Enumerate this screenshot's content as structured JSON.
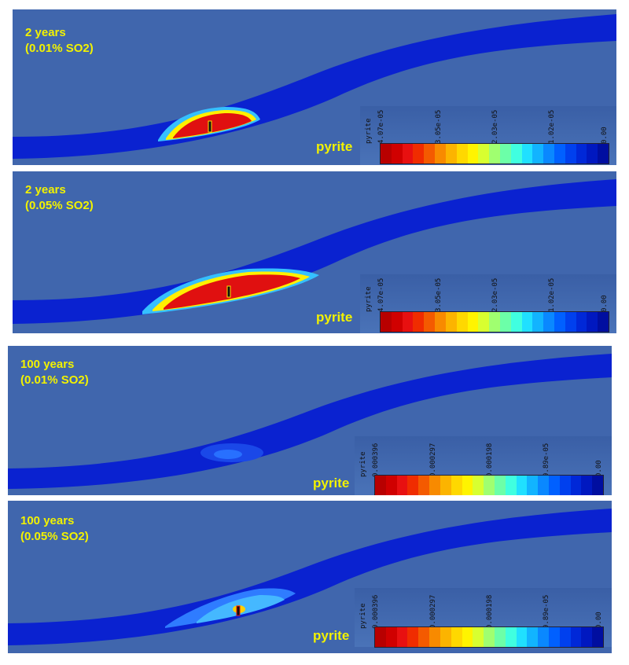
{
  "panels": [
    {
      "title_line1": "2 years",
      "title_line2": "(0.01% SO2)",
      "legend": {
        "variable": "pyrite",
        "ticks": [
          "4.07e-05",
          "3.05e-05",
          "2.03e-05",
          "1.02e-05",
          "0.00"
        ]
      },
      "label": "pyrite"
    },
    {
      "title_line1": "2 years",
      "title_line2": "(0.05% SO2)",
      "legend": {
        "variable": "pyrite",
        "ticks": [
          "4.07e-05",
          "3.05e-05",
          "2.03e-05",
          "1.02e-05",
          "0.00"
        ]
      },
      "label": "pyrite"
    },
    {
      "title_line1": "100 years",
      "title_line2": "(0.01% SO2)",
      "legend": {
        "variable": "pyrite",
        "ticks": [
          "0.000396",
          "0.000297",
          "0.000198",
          "9.89e-05",
          "0.00"
        ]
      },
      "label": "pyrite"
    },
    {
      "title_line1": "100 years",
      "title_line2": "(0.05% SO2)",
      "legend": {
        "variable": "pyrite",
        "ticks": [
          "0.000396",
          "0.000297",
          "0.000198",
          "9.89e-05",
          "0.00"
        ]
      },
      "label": "pyrite"
    }
  ],
  "colors": {
    "background": "#4066ad",
    "layer": "#0a22d0",
    "plume_high": "#e01010",
    "plume_low": "#19a8ff",
    "title_text": "#f2f200"
  },
  "colormap": [
    "#b80000",
    "#d00000",
    "#e81010",
    "#f02c00",
    "#f45a00",
    "#f88a00",
    "#fcb400",
    "#ffd800",
    "#fff400",
    "#d8ff30",
    "#a0ff70",
    "#6cffa8",
    "#40ffe0",
    "#20e0ff",
    "#12b4ff",
    "#0a88ff",
    "#0060ff",
    "#0040ee",
    "#0028d8",
    "#0018c0",
    "#000ea0"
  ]
}
